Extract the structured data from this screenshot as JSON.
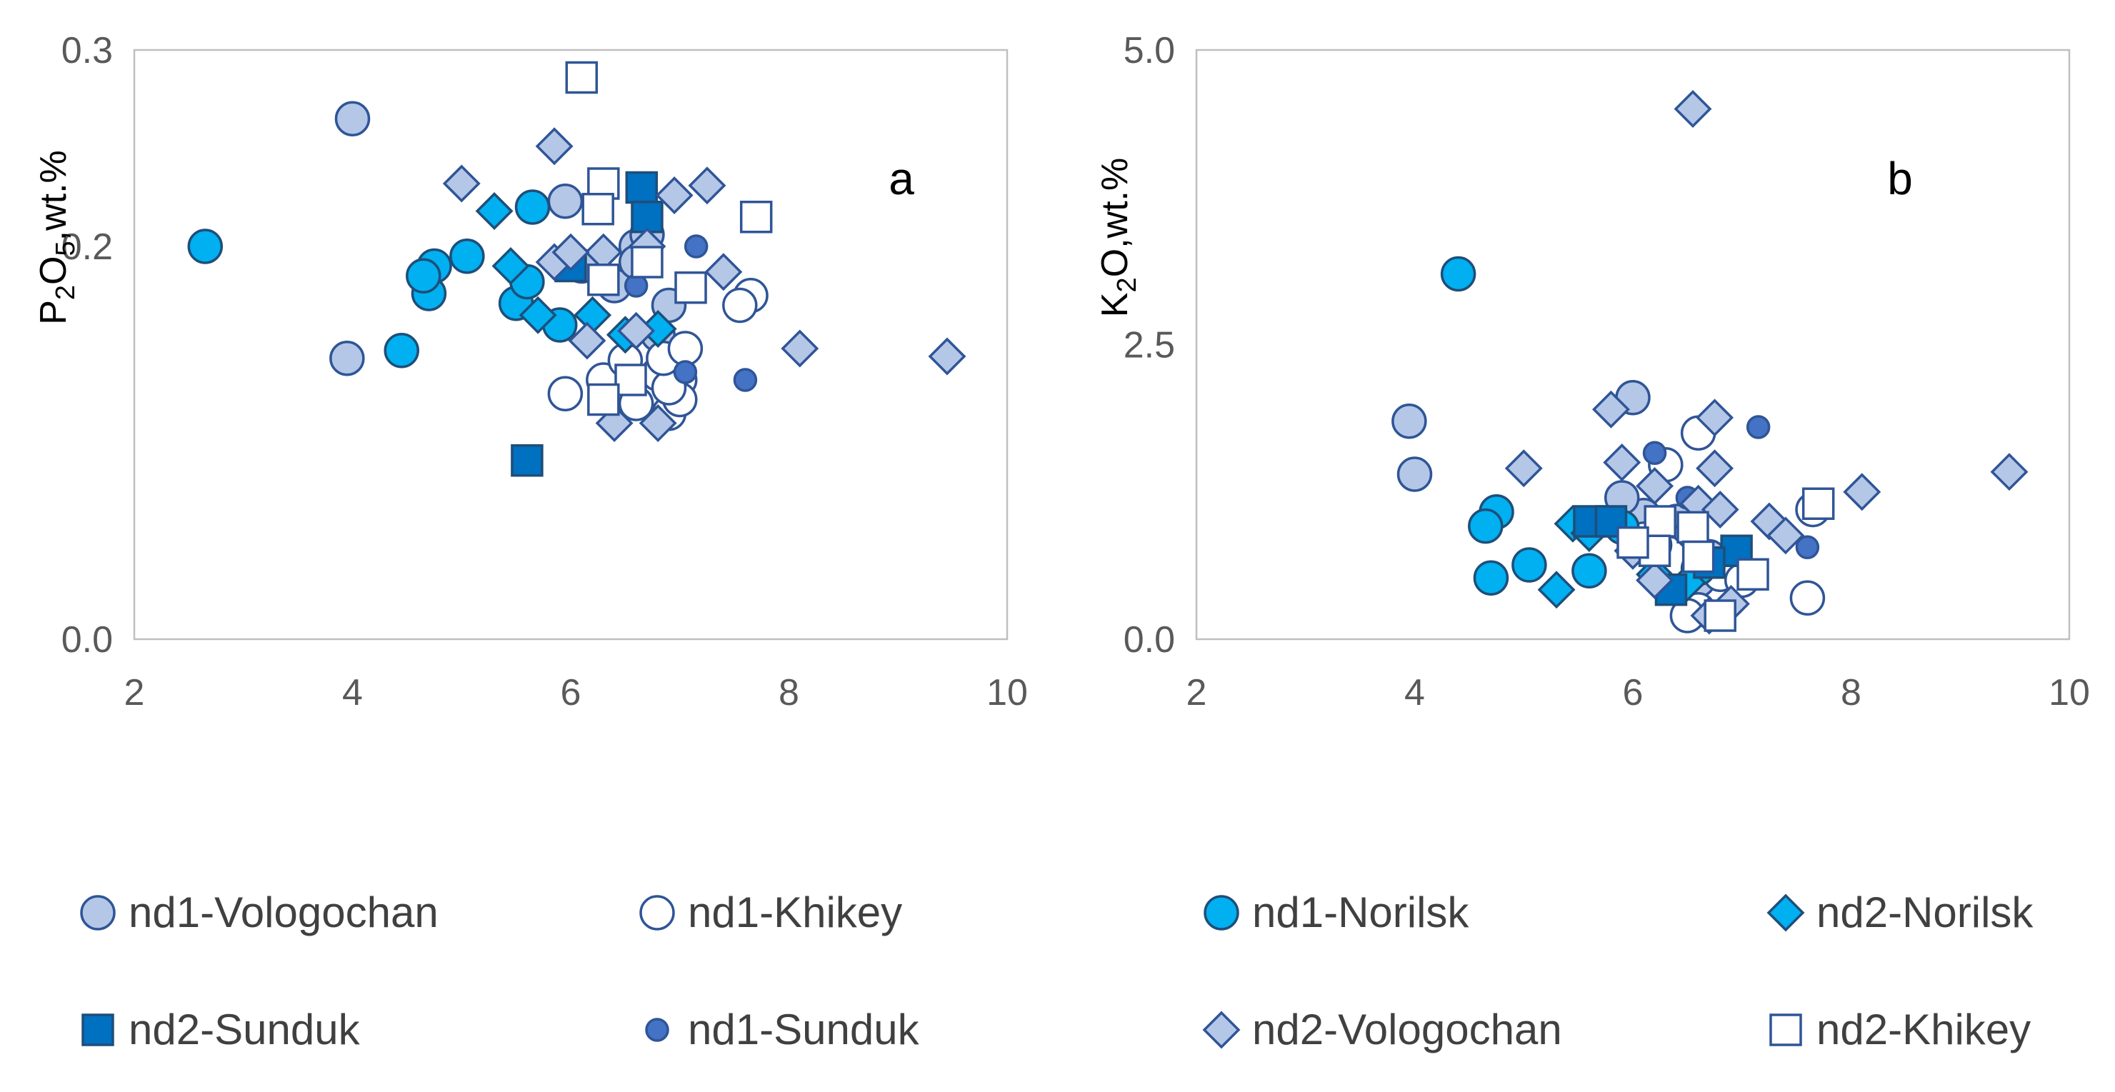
{
  "chart_data": [
    {
      "type": "scatter",
      "panel_label": "a",
      "ylabel_parts": [
        "P",
        "2",
        "O",
        "5",
        ",wt.%"
      ],
      "xlim": [
        2,
        10
      ],
      "ylim": [
        0.0,
        0.3
      ],
      "xticks": [
        "2",
        "4",
        "6",
        "8",
        "10"
      ],
      "yticks": [
        "0.0",
        "0.2",
        "0.3"
      ],
      "grid": false,
      "series": [
        {
          "name": "nd1-Vologochan",
          "x": [
            4.0,
            3.95,
            5.95,
            6.1,
            6.6,
            6.4,
            6.7,
            6.9,
            6.6,
            6.8
          ],
          "y": [
            0.265,
            0.143,
            0.223,
            0.19,
            0.2,
            0.18,
            0.206,
            0.17,
            0.192,
            0.155
          ]
        },
        {
          "name": "nd1-Khikey",
          "x": [
            7.65,
            7.55,
            7.0,
            6.9,
            6.8,
            7.0,
            5.95,
            6.3,
            6.5,
            6.6,
            6.9,
            6.85,
            7.05
          ],
          "y": [
            0.175,
            0.17,
            0.132,
            0.115,
            0.135,
            0.122,
            0.125,
            0.132,
            0.142,
            0.12,
            0.128,
            0.143,
            0.148
          ]
        },
        {
          "name": "nd1-Norilsk",
          "x": [
            2.65,
            4.45,
            4.7,
            4.75,
            4.65,
            5.05,
            5.5,
            5.6,
            5.65,
            5.9
          ],
          "y": [
            0.2,
            0.147,
            0.176,
            0.19,
            0.185,
            0.195,
            0.171,
            0.182,
            0.22,
            0.16
          ]
        },
        {
          "name": "nd2-Norilsk",
          "x": [
            5.3,
            5.45,
            5.7,
            6.2,
            6.5,
            6.8
          ],
          "y": [
            0.218,
            0.19,
            0.165,
            0.165,
            0.155,
            0.158
          ]
        },
        {
          "name": "nd2-Sunduk",
          "x": [
            5.6,
            6.65,
            6.7,
            6.0
          ],
          "y": [
            0.091,
            0.23,
            0.215,
            0.19
          ]
        },
        {
          "name": "nd1-Sunduk",
          "x": [
            7.15,
            7.05,
            7.6,
            6.6
          ],
          "y": [
            0.2,
            0.136,
            0.132,
            0.18
          ]
        },
        {
          "name": "nd2-Vologochan",
          "x": [
            5.85,
            5.0,
            7.25,
            6.95,
            7.4,
            8.1,
            9.45,
            6.3,
            6.15,
            6.6,
            6.4,
            6.8,
            6.7,
            5.85,
            6.0
          ],
          "y": [
            0.251,
            0.232,
            0.231,
            0.226,
            0.187,
            0.148,
            0.144,
            0.197,
            0.152,
            0.157,
            0.11,
            0.11,
            0.2,
            0.192,
            0.197
          ]
        },
        {
          "name": "nd2-Khikey",
          "x": [
            6.1,
            6.3,
            7.7,
            6.25,
            6.3,
            6.7,
            7.1,
            6.55,
            6.3
          ],
          "y": [
            0.286,
            0.232,
            0.215,
            0.219,
            0.183,
            0.192,
            0.179,
            0.132,
            0.122
          ]
        }
      ]
    },
    {
      "type": "scatter",
      "panel_label": "b",
      "ylabel_parts": [
        "K",
        "2",
        "O,wt.%"
      ],
      "xlim": [
        2,
        10
      ],
      "ylim": [
        0.0,
        5.0
      ],
      "xticks": [
        "2",
        "4",
        "6",
        "8",
        "10"
      ],
      "yticks": [
        "0.0",
        "2.5",
        "5.0"
      ],
      "grid": false,
      "series": [
        {
          "name": "nd1-Vologochan",
          "x": [
            3.95,
            4.0,
            6.0,
            6.1,
            5.9,
            6.4,
            6.7,
            6.6
          ],
          "y": [
            1.85,
            1.4,
            2.05,
            1.05,
            1.2,
            1.0,
            0.7,
            0.5
          ]
        },
        {
          "name": "nd1-Khikey",
          "x": [
            6.6,
            6.3,
            7.6,
            7.65,
            6.1,
            6.8,
            6.6,
            6.5,
            7.0
          ],
          "y": [
            1.75,
            1.48,
            0.35,
            1.1,
            0.85,
            0.55,
            0.25,
            0.2,
            0.5
          ]
        },
        {
          "name": "nd1-Norilsk",
          "x": [
            4.4,
            4.75,
            4.65,
            4.7,
            5.05,
            5.6,
            5.9,
            6.2,
            6.6
          ],
          "y": [
            3.1,
            1.08,
            0.96,
            0.52,
            0.63,
            0.58,
            0.95,
            0.8,
            0.6
          ]
        },
        {
          "name": "nd2-Norilsk",
          "x": [
            5.3,
            5.45,
            5.6,
            6.0,
            6.2,
            6.5
          ],
          "y": [
            0.42,
            0.98,
            0.9,
            0.75,
            0.55,
            0.48
          ]
        },
        {
          "name": "nd2-Sunduk",
          "x": [
            5.6,
            5.8,
            6.35,
            6.95,
            6.7
          ],
          "y": [
            1.0,
            1.0,
            0.42,
            0.75,
            0.65
          ]
        },
        {
          "name": "nd1-Sunduk",
          "x": [
            6.2,
            7.15,
            7.6,
            6.5
          ],
          "y": [
            1.58,
            1.8,
            0.78,
            1.2
          ]
        },
        {
          "name": "nd2-Vologochan",
          "x": [
            6.55,
            5.8,
            5.0,
            6.75,
            9.45,
            8.1,
            7.25,
            7.4,
            6.75,
            5.9,
            6.2,
            6.6,
            6.8,
            6.2,
            6.9,
            6.7,
            6.5,
            6.0
          ],
          "y": [
            4.5,
            1.95,
            1.45,
            1.88,
            1.42,
            1.25,
            1.0,
            0.88,
            1.45,
            1.5,
            1.3,
            1.15,
            1.1,
            0.5,
            0.3,
            0.2,
            0.9,
            0.75
          ]
        },
        {
          "name": "nd2-Khikey",
          "x": [
            7.7,
            6.25,
            6.55,
            6.6,
            7.1,
            6.8,
            6.2,
            6.0
          ],
          "y": [
            1.15,
            1.0,
            0.95,
            0.7,
            0.55,
            0.2,
            0.75,
            0.82
          ]
        }
      ]
    }
  ],
  "legend": {
    "placement": "bottom",
    "items": [
      {
        "name": "nd1-Vologochan",
        "marker": "circle",
        "fill": "#b4c7e7",
        "stroke": "#2f5597"
      },
      {
        "name": "nd1-Khikey",
        "marker": "circle",
        "fill": "#ffffff",
        "stroke": "#2f5597"
      },
      {
        "name": "nd1-Norilsk",
        "marker": "circle",
        "fill": "#00b0f0",
        "stroke": "#1f4e79"
      },
      {
        "name": "nd2-Norilsk",
        "marker": "diamond",
        "fill": "#00b0f0",
        "stroke": "#1f4e79"
      },
      {
        "name": "nd2-Sunduk",
        "marker": "square",
        "fill": "#0070c0",
        "stroke": "#1f4e79"
      },
      {
        "name": "nd1-Sunduk",
        "marker": "small-circle",
        "fill": "#4472c4",
        "stroke": "#2f5597"
      },
      {
        "name": "nd2-Vologochan",
        "marker": "diamond",
        "fill": "#b4c7e7",
        "stroke": "#2f5597"
      },
      {
        "name": "nd2-Khikey",
        "marker": "square",
        "fill": "#ffffff",
        "stroke": "#2f5597"
      }
    ]
  }
}
